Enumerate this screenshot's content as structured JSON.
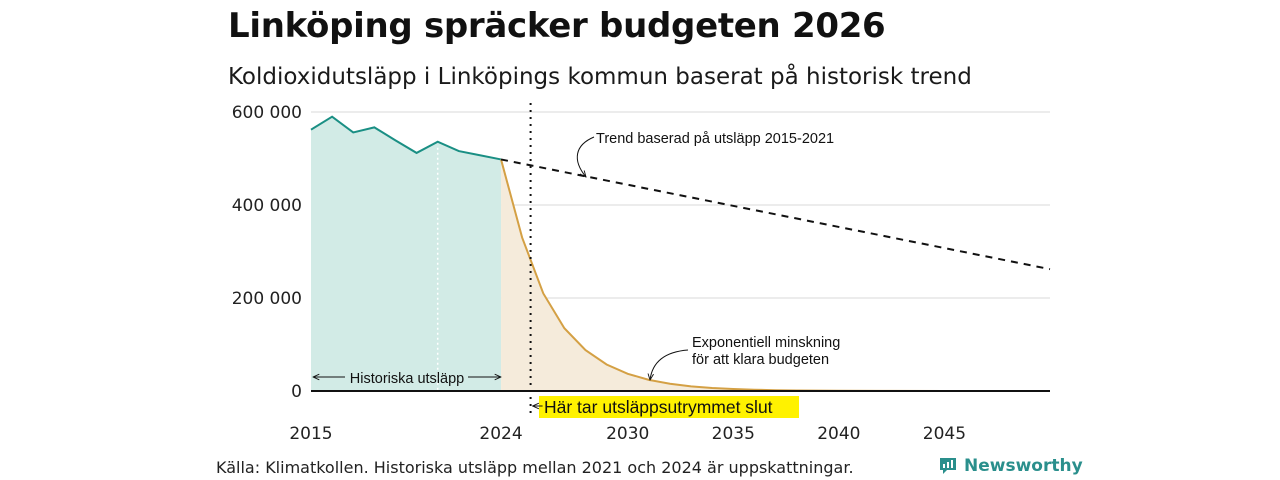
{
  "header": {
    "title": "Linköping spräcker budgeten 2026",
    "subtitle": "Koldioxidutsläpp i Linköpings kommun baserat på historisk trend"
  },
  "footer": {
    "source": "Källa: Klimatkollen. Historiska utsläpp mellan 2021 och 2024 är uppskattningar.",
    "brand": "Newsworthy"
  },
  "colors": {
    "historic_line": "#1a8f84",
    "historic_fill": "#d2ebe6",
    "budget_line": "#d4a044",
    "budget_fill": "#f5ebdb",
    "highlight": "#fff200",
    "grid": "#d9d9d9",
    "brand": "#2a8f8c"
  },
  "chart_data": {
    "type": "area",
    "title": "Koldioxidutsläpp i Linköpings kommun baserat på historisk trend",
    "xlim": [
      2015,
      2050
    ],
    "ylim": [
      0,
      600000
    ],
    "yticks": [
      0,
      200000,
      400000,
      600000
    ],
    "ytick_labels": [
      "0",
      "200 000",
      "400 000",
      "600 000"
    ],
    "xticks": [
      2015,
      2024,
      2030,
      2035,
      2040,
      2045
    ],
    "xtick_labels": [
      "2015",
      "2024",
      "2030",
      "2035",
      "2040",
      "2045"
    ],
    "series": [
      {
        "name": "Historiska utsläpp",
        "style": "area-line",
        "x": [
          2015,
          2016,
          2017,
          2018,
          2019,
          2020,
          2021,
          2022,
          2023,
          2024
        ],
        "y": [
          562000,
          590000,
          556000,
          567000,
          539000,
          512000,
          536000,
          516000,
          507000,
          498000
        ]
      },
      {
        "name": "Trend baserad på utsläpp 2015-2021",
        "style": "dashed",
        "x": [
          2024,
          2050
        ],
        "y": [
          498000,
          262000
        ]
      },
      {
        "name": "Exponentiell minskning för att klara budgeten",
        "style": "area-line",
        "x": [
          2024,
          2025,
          2026,
          2027,
          2028,
          2029,
          2030,
          2031,
          2032,
          2033,
          2034,
          2035,
          2036,
          2037,
          2038,
          2039,
          2040,
          2042,
          2045,
          2050
        ],
        "y": [
          498000,
          330000,
          210000,
          135000,
          88000,
          57000,
          37000,
          24000,
          15500,
          10000,
          6500,
          4200,
          2700,
          1700,
          1100,
          700,
          450,
          200,
          50,
          0
        ]
      }
    ],
    "budget_end_year": 2025.4,
    "annotations": {
      "historic": "Historiska utsläpp",
      "trend": "Trend baserad på utsläpp 2015-2021",
      "exp_line1": "Exponentiell minskning",
      "exp_line2": "för att klara budgeten",
      "budget_end": "Här tar utsläppsutrymmet slut"
    }
  }
}
